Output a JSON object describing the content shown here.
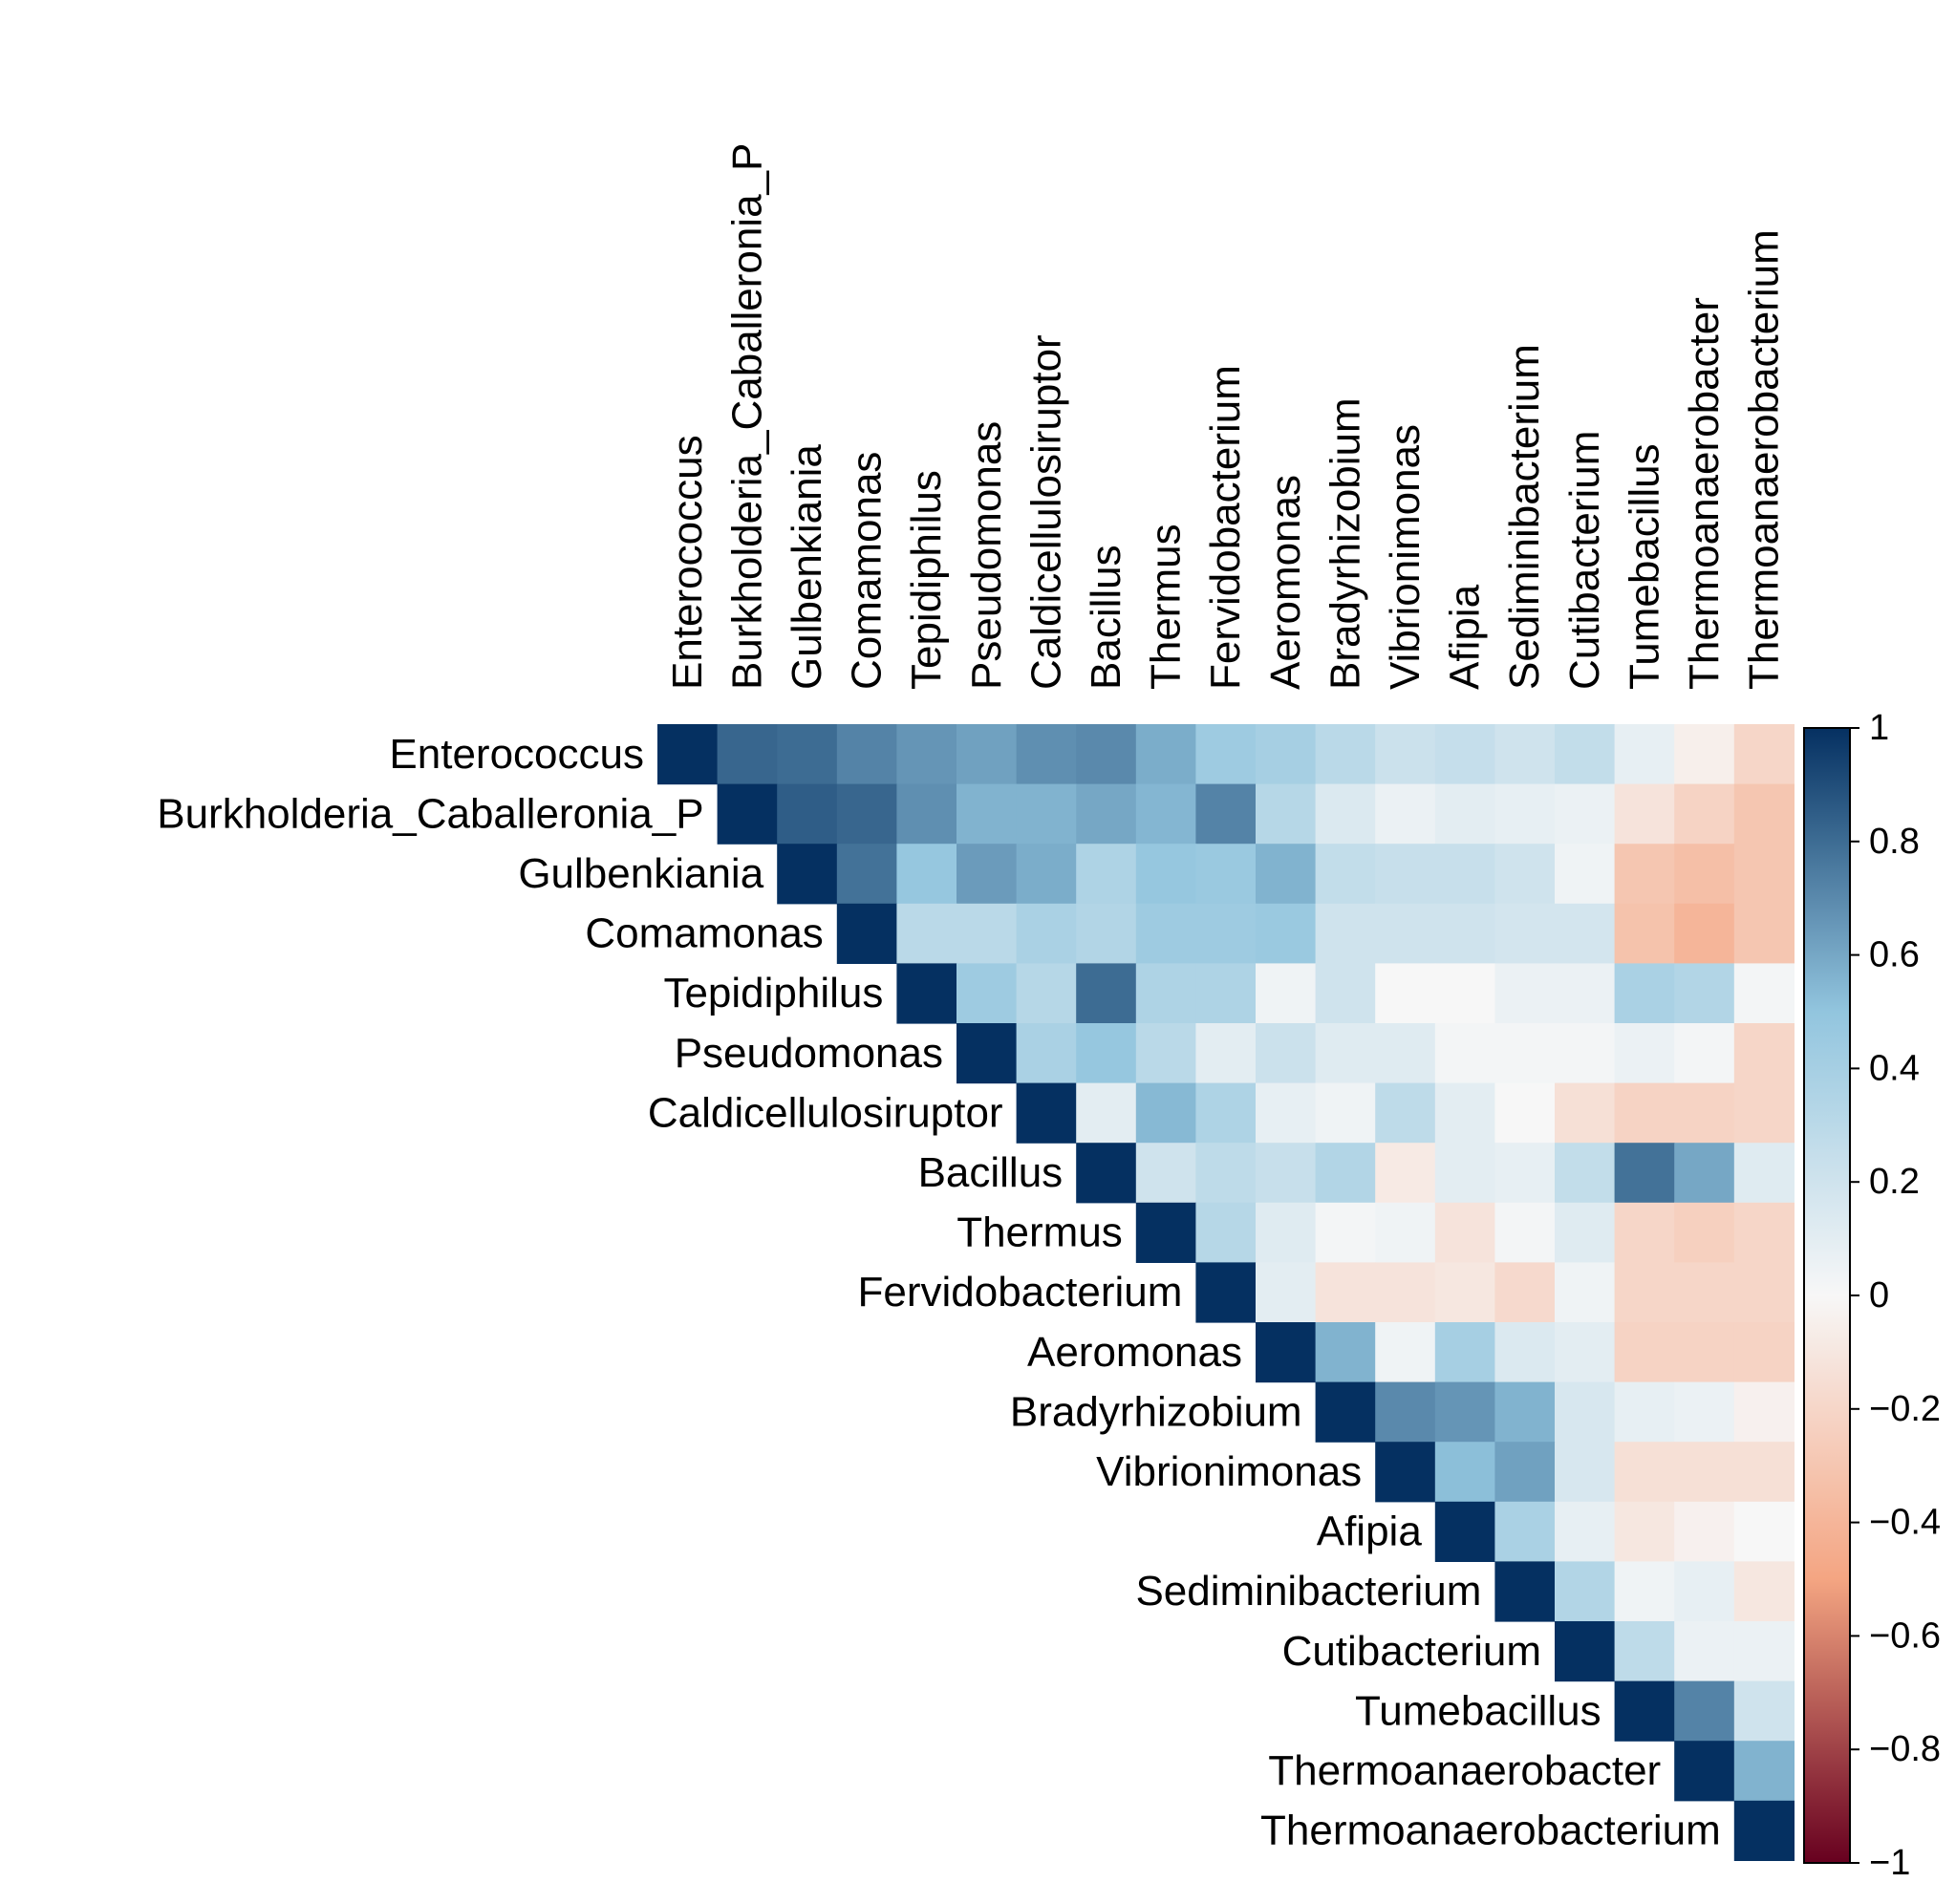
{
  "chart_data": {
    "type": "heatmap",
    "title": "",
    "layout": "upper-triangle",
    "labels": [
      "Enterococcus",
      "Burkholderia_Caballeronia_P",
      "Gulbenkiania",
      "Comamonas",
      "Tepidiphilus",
      "Pseudomonas",
      "Caldicellulosiruptor",
      "Bacillus",
      "Thermus",
      "Fervidobacterium",
      "Aeromonas",
      "Bradyrhizobium",
      "Vibrionimonas",
      "Afipia",
      "Sediminibacterium",
      "Cutibacterium",
      "Tumebacillus",
      "Thermoanaerobacter",
      "Thermoanaerobacterium"
    ],
    "matrix_upper": [
      [
        1.0,
        0.82,
        0.8,
        0.72,
        0.66,
        0.62,
        0.68,
        0.7,
        0.58,
        0.44,
        0.4,
        0.3,
        0.22,
        0.25,
        0.2,
        0.26,
        0.08,
        -0.05,
        -0.2
      ],
      [
        1.0,
        0.85,
        0.82,
        0.68,
        0.56,
        0.56,
        0.6,
        0.55,
        0.72,
        0.32,
        0.14,
        0.06,
        0.1,
        0.08,
        0.06,
        -0.12,
        -0.22,
        -0.3
      ],
      [
        1.0,
        0.78,
        0.48,
        0.64,
        0.58,
        0.36,
        0.48,
        0.46,
        0.56,
        0.26,
        0.24,
        0.24,
        0.2,
        0.04,
        -0.3,
        -0.34,
        -0.3
      ],
      [
        1.0,
        0.3,
        0.3,
        0.38,
        0.34,
        0.44,
        0.44,
        0.46,
        0.2,
        0.2,
        0.2,
        0.18,
        0.18,
        -0.32,
        -0.4,
        -0.3
      ],
      [
        1.0,
        0.44,
        0.32,
        0.8,
        0.36,
        0.36,
        0.04,
        0.2,
        0.0,
        0.0,
        0.06,
        0.06,
        0.38,
        0.34,
        0.02
      ],
      [
        1.0,
        0.38,
        0.48,
        0.3,
        0.1,
        0.22,
        0.12,
        0.12,
        0.02,
        0.02,
        0.02,
        0.06,
        0.02,
        -0.2
      ],
      [
        1.0,
        0.1,
        0.54,
        0.36,
        0.08,
        0.04,
        0.28,
        0.1,
        0.0,
        -0.14,
        -0.22,
        -0.22,
        -0.2
      ],
      [
        1.0,
        0.2,
        0.28,
        0.24,
        0.34,
        -0.08,
        0.1,
        0.08,
        0.26,
        0.78,
        0.6,
        0.12
      ],
      [
        1.0,
        0.32,
        0.12,
        0.02,
        0.04,
        -0.12,
        0.02,
        0.12,
        -0.2,
        -0.24,
        -0.2
      ],
      [
        1.0,
        0.1,
        -0.12,
        -0.12,
        -0.1,
        -0.18,
        0.04,
        -0.2,
        -0.2,
        -0.2
      ],
      [
        1.0,
        0.56,
        0.04,
        0.4,
        0.14,
        0.1,
        -0.22,
        -0.22,
        -0.22
      ],
      [
        1.0,
        0.7,
        0.66,
        0.56,
        0.16,
        0.08,
        0.06,
        -0.04
      ],
      [
        1.0,
        0.52,
        0.62,
        0.16,
        -0.14,
        -0.14,
        -0.14
      ],
      [
        1.0,
        0.38,
        0.08,
        -0.1,
        -0.04,
        0.0
      ],
      [
        1.0,
        0.34,
        0.04,
        0.08,
        -0.1
      ],
      [
        1.0,
        0.28,
        0.06,
        0.06
      ],
      [
        1.0,
        0.72,
        0.2
      ],
      [
        1.0,
        0.56
      ],
      [
        1.0
      ]
    ],
    "colorbar": {
      "range": [
        -1,
        1
      ],
      "ticks": [
        "1",
        "0.8",
        "0.6",
        "0.4",
        "0.2",
        "0",
        "−0.2",
        "−0.4",
        "−0.6",
        "−0.8",
        "−1"
      ],
      "tick_values": [
        1,
        0.8,
        0.6,
        0.4,
        0.2,
        0,
        -0.2,
        -0.4,
        -0.6,
        -0.8,
        -1
      ],
      "colors": {
        "neg_full": "#67001f",
        "neg_mid": "#f4a582",
        "zero": "#f7f7f7",
        "pos_mid": "#92c5de",
        "pos_full": "#053061"
      }
    }
  }
}
